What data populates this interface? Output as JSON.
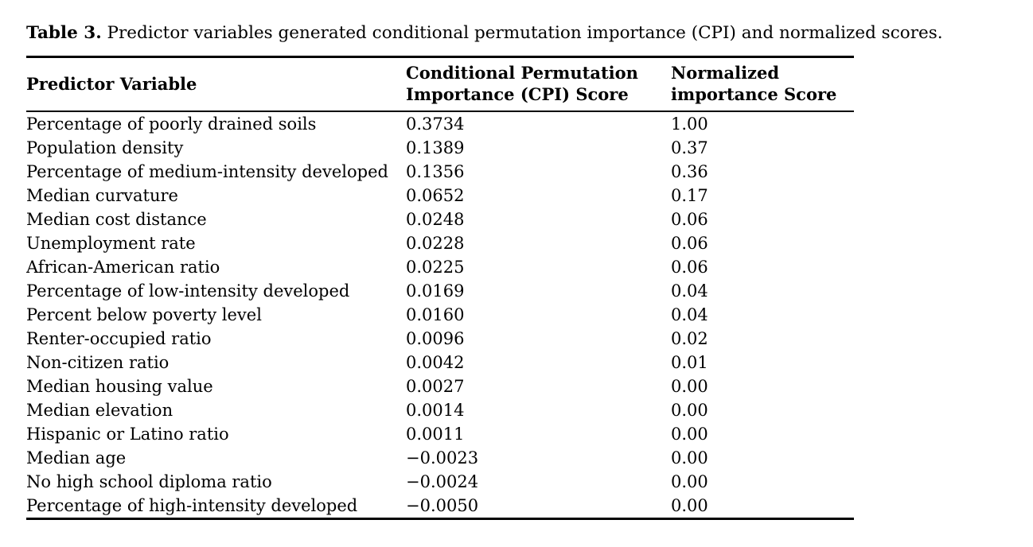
{
  "page": {
    "background_color": "#ffffff",
    "text_color": "#000000",
    "rule_color": "#000000"
  },
  "caption": {
    "label": "Table 3.",
    "text": "Predictor variables generated conditional permutation importance (CPI) and normalized scores."
  },
  "table": {
    "columns": [
      {
        "label": "Predictor Variable"
      },
      {
        "line1": "Conditional Permutation",
        "line2": "Importance (CPI) Score"
      },
      {
        "line1": "Normalized",
        "line2": "importance Score"
      }
    ],
    "rows": [
      {
        "variable": "Percentage of poorly drained soils",
        "cpi": "0.3734",
        "normalized": "1.00"
      },
      {
        "variable": "Population density",
        "cpi": "0.1389",
        "normalized": "0.37"
      },
      {
        "variable": "Percentage of medium-intensity developed",
        "cpi": "0.1356",
        "normalized": "0.36"
      },
      {
        "variable": "Median curvature",
        "cpi": "0.0652",
        "normalized": "0.17"
      },
      {
        "variable": "Median cost distance",
        "cpi": "0.0248",
        "normalized": "0.06"
      },
      {
        "variable": "Unemployment rate",
        "cpi": "0.0228",
        "normalized": "0.06"
      },
      {
        "variable": "African-American ratio",
        "cpi": "0.0225",
        "normalized": "0.06"
      },
      {
        "variable": "Percentage of low-intensity developed",
        "cpi": "0.0169",
        "normalized": "0.04"
      },
      {
        "variable": "Percent below poverty level",
        "cpi": "0.0160",
        "normalized": "0.04"
      },
      {
        "variable": "Renter-occupied ratio",
        "cpi": "0.0096",
        "normalized": "0.02"
      },
      {
        "variable": "Non-citizen ratio",
        "cpi": "0.0042",
        "normalized": "0.01"
      },
      {
        "variable": "Median housing value",
        "cpi": "0.0027",
        "normalized": "0.00"
      },
      {
        "variable": "Median elevation",
        "cpi": "0.0014",
        "normalized": "0.00"
      },
      {
        "variable": "Hispanic or Latino ratio",
        "cpi": "0.0011",
        "normalized": "0.00"
      },
      {
        "variable": "Median age",
        "cpi": "−0.0023",
        "normalized": "0.00"
      },
      {
        "variable": "No high school diploma ratio",
        "cpi": "−0.0024",
        "normalized": "0.00"
      },
      {
        "variable": "Percentage of high-intensity developed",
        "cpi": "−0.0050",
        "normalized": "0.00"
      }
    ]
  }
}
